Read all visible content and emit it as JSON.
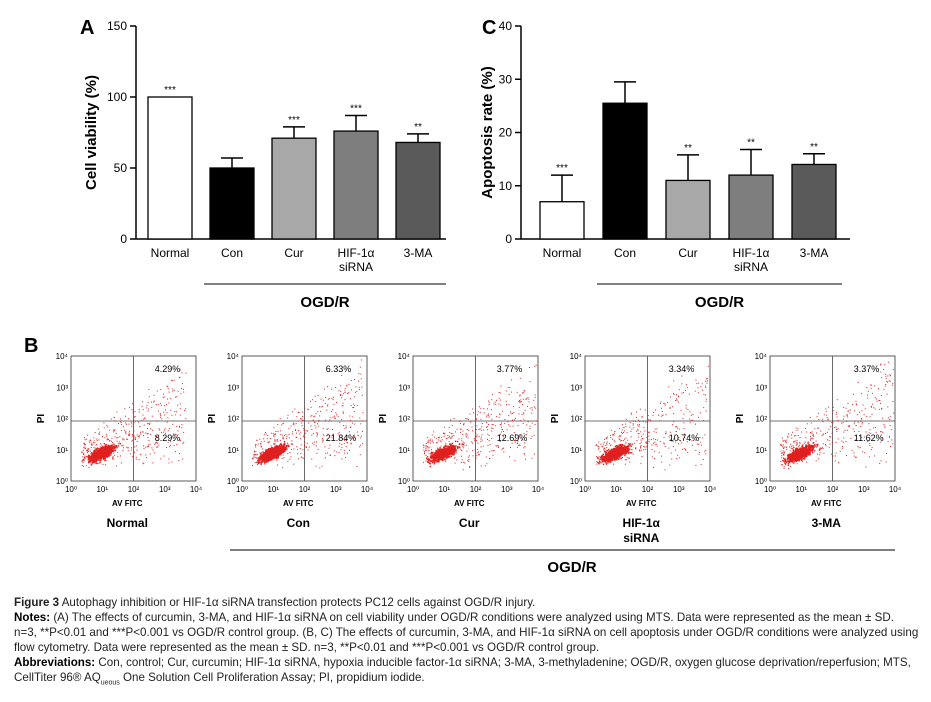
{
  "chart_data": [
    {
      "type": "bar",
      "panel": "A",
      "categories": [
        "Normal",
        "Con",
        "Cur",
        "HIF-1α siRNA",
        "3-MA"
      ],
      "values": [
        100,
        50,
        71,
        76,
        68
      ],
      "errors": [
        0,
        7,
        8,
        11,
        6
      ],
      "significance": [
        "***",
        "",
        "***",
        "***",
        "**"
      ],
      "colors": [
        "#ffffff",
        "#000000",
        "#a8a8a8",
        "#7e7e7e",
        "#5a5a5a"
      ],
      "ylabel": "Cell viability (%)",
      "group_label": "OGD/R",
      "ylim": [
        0,
        150
      ],
      "yticks": [
        0,
        50,
        100,
        150
      ]
    },
    {
      "type": "bar",
      "panel": "C",
      "categories": [
        "Normal",
        "Con",
        "Cur",
        "HIF-1α siRNA",
        "3-MA"
      ],
      "values": [
        7,
        25.5,
        11,
        12,
        14
      ],
      "errors": [
        5,
        4,
        4.8,
        4.8,
        2
      ],
      "significance": [
        "***",
        "",
        "**",
        "**",
        "**"
      ],
      "colors": [
        "#ffffff",
        "#000000",
        "#a8a8a8",
        "#7e7e7e",
        "#5a5a5a"
      ],
      "ylabel": "Apoptosis rate (%)",
      "group_label": "OGD/R",
      "ylim": [
        0,
        40
      ],
      "yticks": [
        0,
        10,
        20,
        30,
        40
      ]
    },
    {
      "type": "scatter",
      "panel": "B",
      "subtitle": "flow cytometry dot plots",
      "xlabel": "AV FITC",
      "ylabel": "PI",
      "xticks": [
        "10⁰",
        "10¹",
        "10²",
        "10³",
        "10⁴"
      ],
      "yticks": [
        "10⁰",
        "10¹",
        "10²",
        "10³",
        "10⁴"
      ],
      "group_label": "OGD/R",
      "plots": [
        {
          "name": "Normal",
          "upper_right": "4.29%",
          "lower_right": "8.29%"
        },
        {
          "name": "Con",
          "upper_right": "6.33%",
          "lower_right": "21.84%"
        },
        {
          "name": "Cur",
          "upper_right": "3.77%",
          "lower_right": "12.69%"
        },
        {
          "name": "HIF-1α siRNA",
          "upper_right": "3.34%",
          "lower_right": "10.74%"
        },
        {
          "name": "3-MA",
          "upper_right": "3.37%",
          "lower_right": "11.62%"
        }
      ]
    }
  ],
  "panels": {
    "a": "A",
    "b": "B",
    "c": "C"
  },
  "caption": {
    "figure_label": "Figure 3",
    "figure_title": "Autophagy inhibition or HIF-1α siRNA transfection protects PC12 cells against OGD/R injury.",
    "notes_label": "Notes:",
    "notes_text": "(A) The effects of curcumin, 3-MA, and HIF-1α siRNA on cell viability under OGD/R conditions were analyzed using MTS. Data were represented as the mean ± SD. n=3, **P<0.01 and ***P<0.001 vs OGD/R control group. (B, C) The effects of curcumin, 3-MA, and HIF-1α siRNA on cell apoptosis under OGD/R conditions were analyzed using flow cytometry. Data were represented as the mean ± SD. n=3, **P<0.01 and ***P<0.001 vs OGD/R control group.",
    "abbr_label": "Abbreviations:",
    "abbr_text": "Con, control; Cur, curcumin; HIF-1α siRNA, hypoxia inducible factor-1α siRNA; 3-MA, 3-methyladenine; OGD/R, oxygen glucose deprivation/reperfusion; MTS, CellTiter 96® AQ",
    "abbr_sub": "ueous",
    "abbr_tail": " One Solution Cell Proliferation Assay; PI, propidium iodide."
  }
}
